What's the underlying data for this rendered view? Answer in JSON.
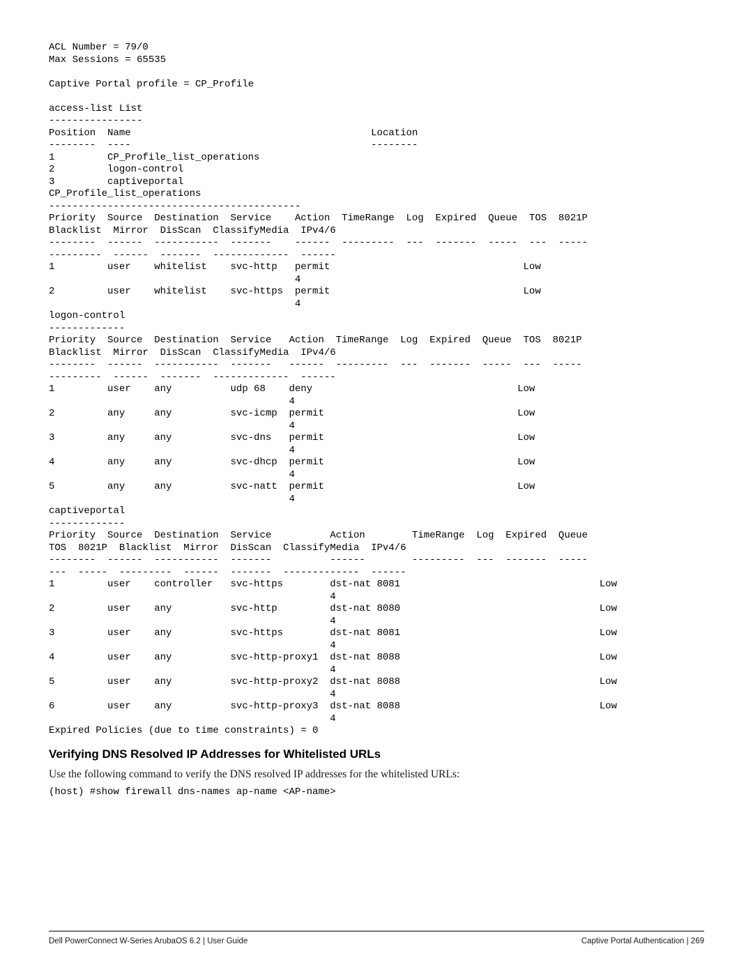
{
  "header": {
    "acl_number_line": "ACL Number = 79/0",
    "max_sessions_line": "Max Sessions = 65535",
    "cp_profile_line": "Captive Portal profile = CP_Profile"
  },
  "access_list": {
    "title": "access-list List",
    "title_sep": "----------------",
    "col_header": "Position  Name                                         Location",
    "col_sep": "--------  ----                                         --------",
    "rows": [
      "1         CP_Profile_list_operations",
      "2         logon-control",
      "3         captiveportal"
    ]
  },
  "cp_ops": {
    "title": "CP_Profile_list_operations",
    "title_sep": "-------------------------------------------",
    "hdr1": "Priority  Source  Destination  Service    Action  TimeRange  Log  Expired  Queue  TOS  8021P",
    "hdr2": "Blacklist  Mirror  DisScan  ClassifyMedia  IPv4/6",
    "sep1": "--------  ------  -----------  -------    ------  ---------  ---  -------  -----  ---  -----",
    "sep2": "---------  ------  -------  -------------  ------",
    "rows": [
      "1         user    whitelist    svc-http   permit                                 Low",
      "                                          4",
      "2         user    whitelist    svc-https  permit                                 Low",
      "                                          4"
    ]
  },
  "logon_control": {
    "title": "logon-control",
    "title_sep": "-------------",
    "hdr1": "Priority  Source  Destination  Service   Action  TimeRange  Log  Expired  Queue  TOS  8021P",
    "hdr2": "Blacklist  Mirror  DisScan  ClassifyMedia  IPv4/6",
    "sep1": "--------  ------  -----------  -------   ------  ---------  ---  -------  -----  ---  -----",
    "sep2": "---------  ------  -------  -------------  ------",
    "rows": [
      "1         user    any          udp 68    deny                                   Low",
      "                                         4",
      "2         any     any          svc-icmp  permit                                 Low",
      "                                         4",
      "3         any     any          svc-dns   permit                                 Low",
      "                                         4",
      "4         any     any          svc-dhcp  permit                                 Low",
      "                                         4",
      "5         any     any          svc-natt  permit                                 Low",
      "                                         4"
    ]
  },
  "captiveportal": {
    "title": "captiveportal",
    "title_sep": "-------------",
    "hdr1": "Priority  Source  Destination  Service          Action        TimeRange  Log  Expired  Queue",
    "hdr2": "TOS  8021P  Blacklist  Mirror  DisScan  ClassifyMedia  IPv4/6",
    "sep1": "--------  ------  -----------  -------          ------        ---------  ---  -------  -----",
    "sep2": "---  -----  ---------  ------  -------  -------------  ------",
    "rows": [
      "1         user    controller   svc-https        dst-nat 8081                                  Low",
      "                                                4",
      "2         user    any          svc-http         dst-nat 8080                                  Low",
      "                                                4",
      "3         user    any          svc-https        dst-nat 8081                                  Low",
      "                                                4",
      "4         user    any          svc-http-proxy1  dst-nat 8088                                  Low",
      "                                                4",
      "5         user    any          svc-http-proxy2  dst-nat 8088                                  Low",
      "                                                4",
      "6         user    any          svc-http-proxy3  dst-nat 8088                                  Low",
      "                                                4"
    ]
  },
  "expired_line": "Expired Policies (due to time constraints) = 0",
  "section": {
    "heading": "Verifying DNS Resolved IP Addresses for Whitelisted URLs",
    "para": "Use the following command to verify the DNS resolved IP addresses for the whitelisted URLs:",
    "cmd": "(host) #show firewall dns-names ap-name <AP-name>"
  },
  "footer": {
    "left": "Dell PowerConnect W-Series ArubaOS 6.2 | User Guide",
    "right": "Captive Portal Authentication  |  269"
  }
}
